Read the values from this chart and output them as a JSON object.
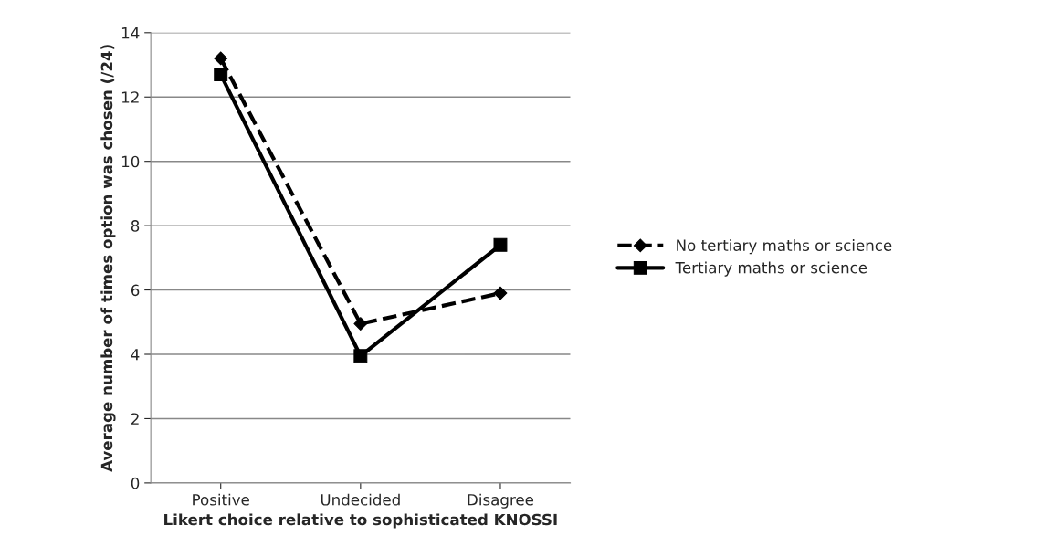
{
  "chart_data": {
    "type": "line",
    "xlabel": "Likert choice relative to sophisticated KNOSSI",
    "ylabel": "Average number of times option was chosen (/24)",
    "categories": [
      "Positive",
      "Undecided",
      "Disagree"
    ],
    "series": [
      {
        "name": "No tertiary maths or science",
        "color": "#000000",
        "marker": "diamond",
        "line_style": "dashed",
        "values": [
          13.2,
          4.95,
          5.9
        ]
      },
      {
        "name": "Tertiary maths or science",
        "color": "#000000",
        "marker": "square",
        "line_style": "solid",
        "values": [
          12.7,
          3.95,
          7.4
        ]
      }
    ],
    "ylim": [
      0,
      14
    ],
    "yticks": [
      0,
      2,
      4,
      6,
      8,
      10,
      12,
      14
    ],
    "grid": "y",
    "legend": "right"
  }
}
